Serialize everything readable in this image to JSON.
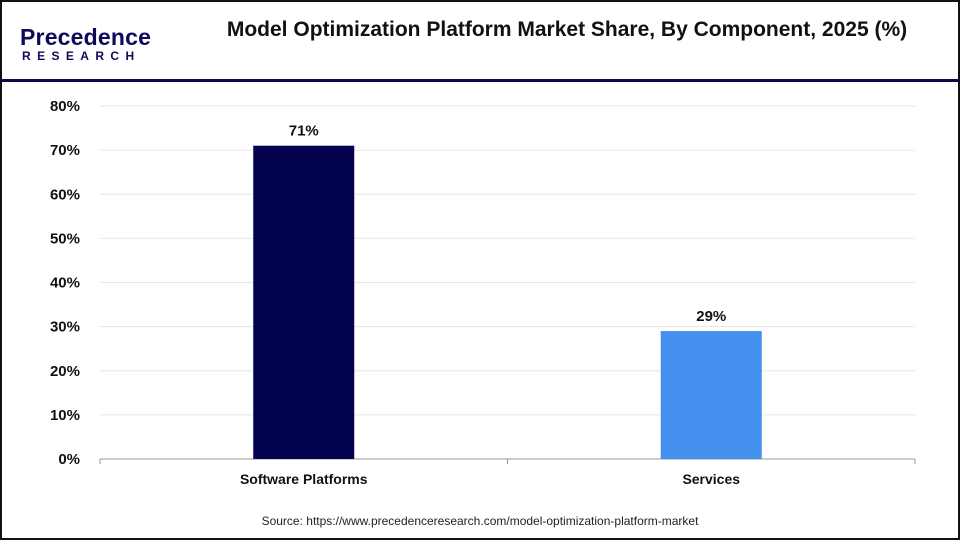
{
  "logo": {
    "main": "Precedence",
    "sub": "RESEARCH"
  },
  "source": "Source: https://www.precedenceresearch.com/model-optimization-platform-market",
  "chart_data": {
    "type": "bar",
    "title": "Model Optimization Platform Market Share, By Component, 2025 (%)",
    "categories": [
      "Software Platforms",
      "Services"
    ],
    "values": [
      71,
      29
    ],
    "data_labels": [
      "71%",
      "29%"
    ],
    "colors": [
      "#03034f",
      "#4390ee"
    ],
    "ylim": [
      0,
      80
    ],
    "yticks": [
      "0%",
      "10%",
      "20%",
      "30%",
      "40%",
      "50%",
      "60%",
      "70%",
      "80%"
    ],
    "grid": true,
    "legend": "none"
  }
}
